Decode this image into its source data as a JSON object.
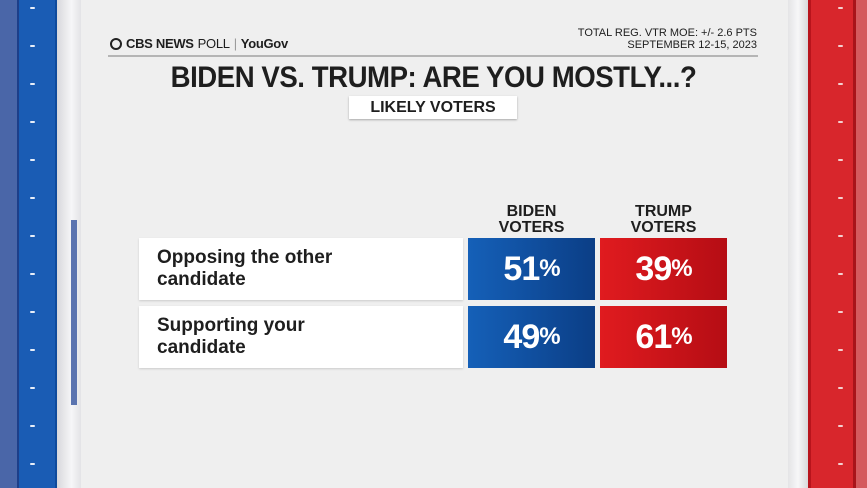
{
  "header": {
    "logo_brand": "CBS NEWS",
    "logo_poll": "POLL",
    "logo_partner": "YouGov",
    "moe": "TOTAL REG. VTR MOE: +/- 2.6 PTS",
    "dates": "SEPTEMBER 12-15, 2023"
  },
  "title": "BIDEN VS. TRUMP: ARE YOU MOSTLY...?",
  "subtitle": "LIKELY VOTERS",
  "colors": {
    "biden": "#1560b8",
    "trump": "#e01b1f"
  },
  "chart_data": {
    "type": "table",
    "columns": [
      "BIDEN VOTERS",
      "TRUMP VOTERS"
    ],
    "rows": [
      {
        "label": "Opposing the other candidate",
        "values": [
          51,
          39
        ],
        "display": [
          "51%",
          "39%"
        ]
      },
      {
        "label": "Supporting your candidate",
        "values": [
          49,
          61
        ],
        "display": [
          "49%",
          "61%"
        ]
      }
    ]
  }
}
